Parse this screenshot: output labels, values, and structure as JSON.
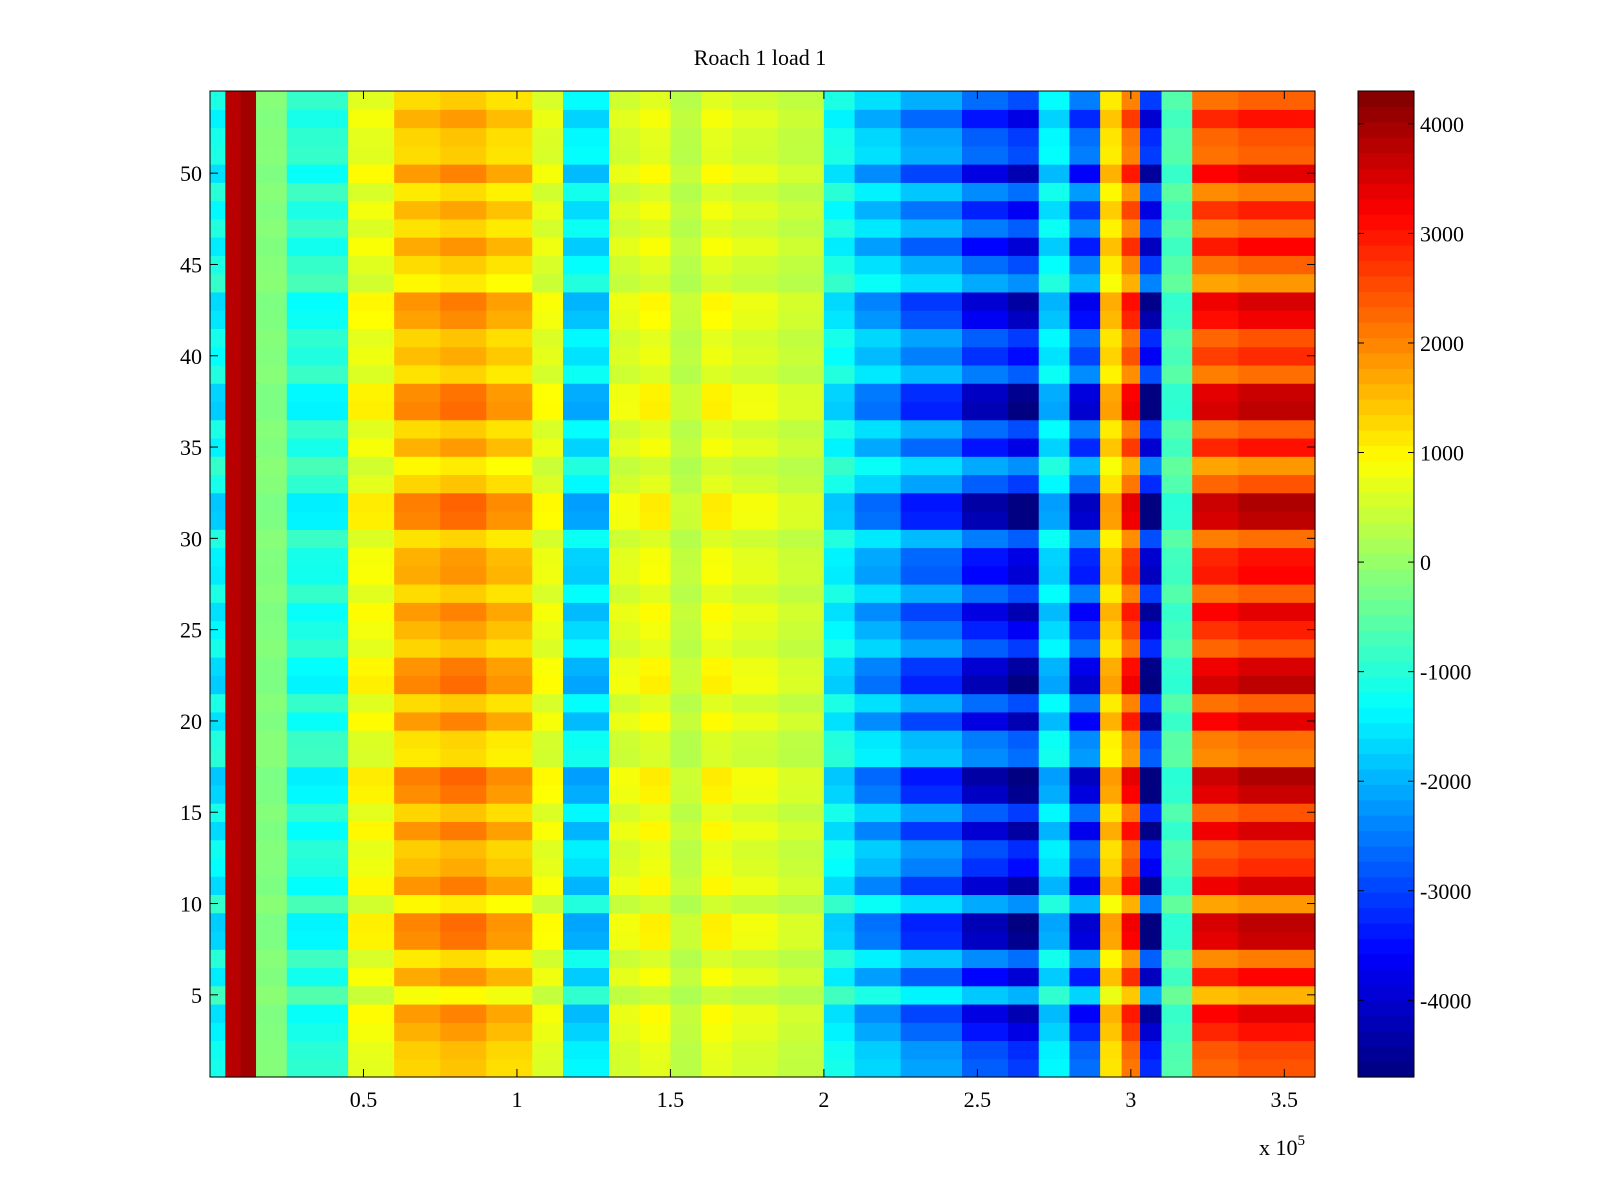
{
  "chart_data": {
    "type": "heatmap",
    "title": "Roach 1 load 1",
    "xlabel": "",
    "ylabel": "",
    "x_multiplier_label": "x 10",
    "x_multiplier_exponent": "5",
    "xlim": [
      0,
      3.6
    ],
    "ylim": [
      0.5,
      54.5
    ],
    "x_ticks": [
      0.5,
      1,
      1.5,
      2,
      2.5,
      3,
      3.5
    ],
    "x_tick_labels": [
      "0.5",
      "1",
      "1.5",
      "2",
      "2.5",
      "3",
      "3.5"
    ],
    "y_ticks": [
      5,
      10,
      15,
      20,
      25,
      30,
      35,
      40,
      45,
      50
    ],
    "y_tick_labels": [
      "5",
      "10",
      "15",
      "20",
      "25",
      "30",
      "35",
      "40",
      "45",
      "50"
    ],
    "colorbar": {
      "colormap": "jet",
      "range": [
        -4700,
        4300
      ],
      "ticks": [
        -4000,
        -3000,
        -2000,
        -1000,
        0,
        1000,
        2000,
        3000,
        4000
      ],
      "tick_labels": [
        "-4000",
        "-3000",
        "-2000",
        "-1000",
        "0",
        "1000",
        "2000",
        "3000",
        "4000"
      ]
    },
    "rows": 54,
    "column_bands_x": [
      0,
      0.05,
      0.1,
      0.15,
      0.25,
      0.45,
      0.6,
      0.75,
      0.9,
      1.05,
      1.15,
      1.3,
      1.4,
      1.5,
      1.6,
      1.7,
      1.85,
      2.0,
      2.1,
      2.25,
      2.45,
      2.6,
      2.7,
      2.8,
      2.9,
      2.97,
      3.03,
      3.1,
      3.2,
      3.35,
      3.5
    ],
    "column_band_values": [
      -1500,
      3800,
      4000,
      -200,
      -1200,
      900,
      1700,
      1900,
      1600,
      800,
      -1800,
      700,
      900,
      400,
      900,
      700,
      500,
      -1500,
      -2200,
      -2800,
      -3600,
      -4000,
      -1800,
      -3400,
      1500,
      2800,
      -4200,
      -800,
      3000,
      3200,
      3200
    ],
    "row_amplitudes": [
      0.55,
      0.6,
      0.8,
      0.95,
      0.2,
      0.85,
      0.4,
      1.05,
      1.1,
      0.3,
      1.0,
      0.7,
      0.6,
      1.0,
      0.55,
      1.05,
      1.15,
      0.4,
      0.45,
      0.95,
      0.5,
      1.1,
      1.0,
      0.55,
      0.75,
      0.95,
      0.5,
      0.85,
      0.8,
      0.45,
      1.1,
      1.15,
      0.55,
      0.3,
      0.8,
      0.5,
      1.1,
      1.05,
      0.45,
      0.7,
      0.55,
      0.9,
      1.0,
      0.3,
      0.5,
      0.85,
      0.45,
      0.75,
      0.4,
      0.95,
      0.5,
      0.55,
      0.8,
      0.5
    ]
  }
}
